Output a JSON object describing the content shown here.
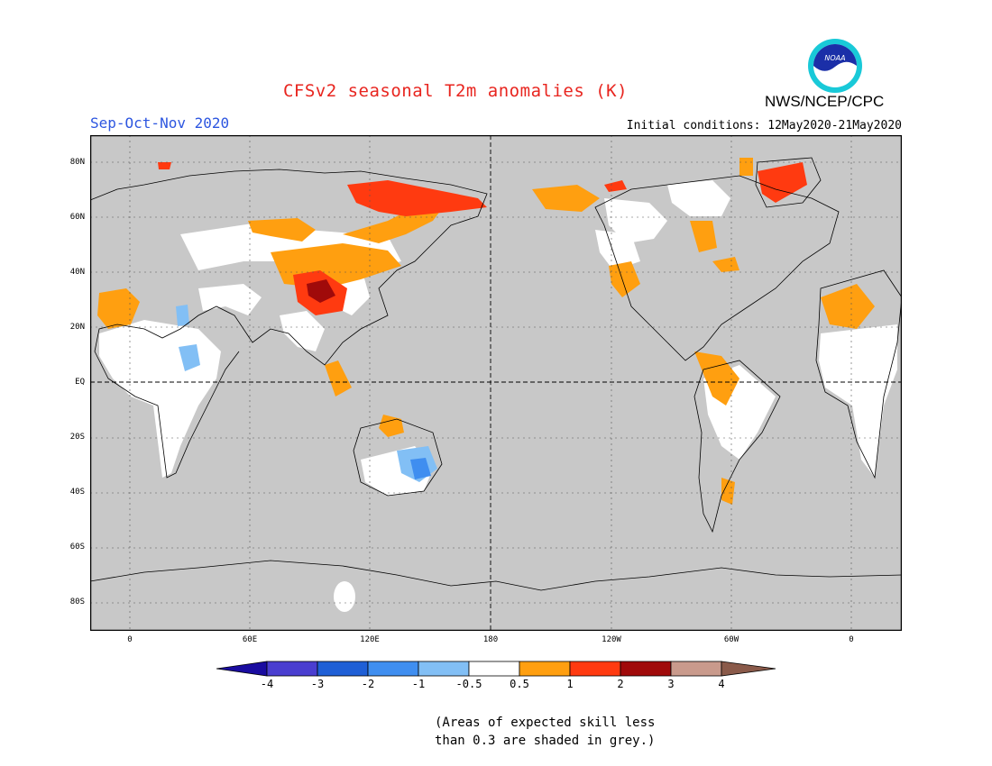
{
  "title": "CFSv2 seasonal T2m anomalies (K)",
  "season": "Sep-Oct-Nov 2020",
  "initial_conditions": "Initial conditions: 12May2020-21May2020",
  "organization": "NWS/NCEP/CPC",
  "logo_text": "NOAA",
  "lat_labels": [
    "80N",
    "60N",
    "40N",
    "20N",
    "EQ",
    "20S",
    "40S",
    "60S",
    "80S"
  ],
  "lon_labels": [
    "0",
    "60E",
    "120E",
    "180",
    "120W",
    "60W",
    "0"
  ],
  "colorbar": {
    "labels": [
      "-4",
      "-3",
      "-2",
      "-1",
      "-0.5",
      "0.5",
      "1",
      "2",
      "3",
      "4"
    ],
    "colors": [
      "#1a0ca0",
      "#4a3ed0",
      "#1f5fd6",
      "#3f8ef0",
      "#82bff5",
      "#ffffff",
      "#ff9f10",
      "#ff3a10",
      "#a00a0a",
      "#c99a8c",
      "#8a5a4a"
    ]
  },
  "note_line1": "(Areas of expected skill less",
  "note_line2": "than 0.3 are shaded in grey.)",
  "colors": {
    "grey_mask": "#c8c8c8",
    "title": "#e8251f",
    "season": "#2d56e0"
  }
}
